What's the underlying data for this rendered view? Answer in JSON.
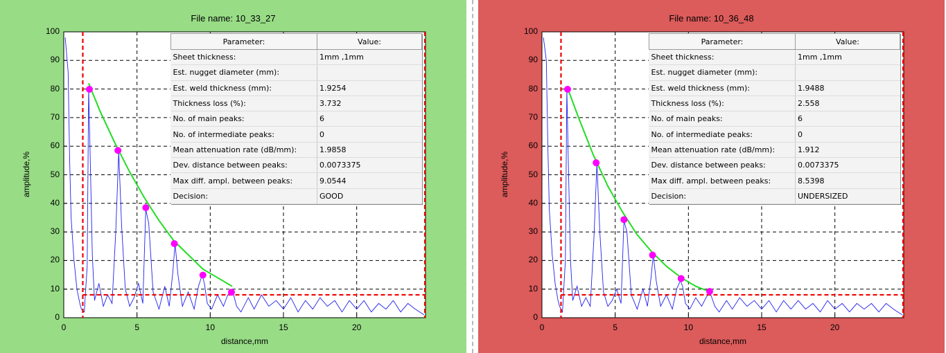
{
  "panels": [
    {
      "title": "File name: 10_33_27",
      "background": "#98dc86",
      "table": {
        "headers": [
          "Parameter:",
          "Value:"
        ],
        "rows": [
          [
            "Sheet thickness:",
            "1mm ,1mm"
          ],
          [
            "Est. nugget diameter (mm):",
            ""
          ],
          [
            "Est. weld thickness (mm):",
            "1.9254"
          ],
          [
            "Thickness loss (%):",
            "3.732"
          ],
          [
            "No. of main peaks:",
            "6"
          ],
          [
            "No. of intermediate peaks:",
            "0"
          ],
          [
            "Mean attenuation rate (dB/mm):",
            "1.9858"
          ],
          [
            "Dev. distance between peaks:",
            "0.0073375"
          ],
          [
            "Max diff. ampl. between peaks:",
            "9.0544"
          ],
          [
            "Decision:",
            "GOOD"
          ]
        ]
      }
    },
    {
      "title": "File name: 10_36_48",
      "background": "#dc5b5b",
      "table": {
        "headers": [
          "Parameter:",
          "Value:"
        ],
        "rows": [
          [
            "Sheet thickness:",
            "1mm ,1mm"
          ],
          [
            "Est. nugget diameter (mm):",
            ""
          ],
          [
            "Est. weld thickness (mm):",
            "1.9488"
          ],
          [
            "Thickness loss (%):",
            "2.558"
          ],
          [
            "No. of main peaks:",
            "6"
          ],
          [
            "No. of intermediate peaks:",
            "0"
          ],
          [
            "Mean attenuation rate (dB/mm):",
            "1.912"
          ],
          [
            "Dev. distance between peaks:",
            "0.0073375"
          ],
          [
            "Max diff. ampl. between peaks:",
            "8.5398"
          ],
          [
            "Decision:",
            "UNDERSIZED"
          ]
        ]
      }
    }
  ],
  "chart_data": [
    {
      "type": "line",
      "title": "File name: 10_33_27",
      "xlabel": "distance,mm",
      "ylabel": "amplitude,%",
      "xlim": [
        0,
        24.7
      ],
      "ylim": [
        0,
        100
      ],
      "xticks": [
        0,
        5,
        10,
        15,
        20
      ],
      "yticks": [
        0,
        10,
        20,
        30,
        40,
        50,
        60,
        70,
        80,
        90,
        100
      ],
      "grid": true,
      "signal_color": "#2020ee",
      "fit_color": "#22dd22",
      "peak_color": "#ff00ff",
      "threshold_color": "#ee0000",
      "signal": {
        "x": [
          0.1,
          0.3,
          0.4,
          0.5,
          0.7,
          0.9,
          1.1,
          1.2,
          1.4,
          1.6,
          1.7,
          1.8,
          1.95,
          2.1,
          2.4,
          2.7,
          3.0,
          3.3,
          3.55,
          3.75,
          3.95,
          4.2,
          4.5,
          4.8,
          5.1,
          5.4,
          5.6,
          5.8,
          6.1,
          6.5,
          6.9,
          7.2,
          7.45,
          7.6,
          7.8,
          8.1,
          8.5,
          8.9,
          9.2,
          9.45,
          9.6,
          9.8,
          10.1,
          10.5,
          10.9,
          11.2,
          11.45,
          11.6,
          11.8,
          12.1,
          12.6,
          13.0,
          13.5,
          14.0,
          14.5,
          15.0,
          15.5,
          16.0,
          16.5,
          17.0,
          17.5,
          18.0,
          18.5,
          19.0,
          19.5,
          20.0,
          20.5,
          21.0,
          21.5,
          22.0,
          22.5,
          23.0,
          23.5,
          24.0,
          24.6
        ],
        "y": [
          98,
          86,
          55,
          35,
          20,
          10,
          5,
          3,
          2,
          18,
          80,
          58,
          22,
          6,
          12,
          4,
          8,
          5,
          30,
          58,
          32,
          10,
          4,
          7,
          12,
          5,
          38,
          33,
          9,
          3,
          11,
          4,
          16,
          26,
          15,
          4,
          9,
          3,
          11,
          15,
          12,
          5,
          3,
          8,
          4,
          8,
          9,
          8,
          4,
          2,
          7,
          3,
          8,
          4,
          6,
          3,
          7,
          2,
          6,
          3,
          7,
          4,
          6,
          2,
          6,
          3,
          6,
          2,
          5,
          3,
          6,
          2,
          5,
          3,
          1
        ]
      },
      "fit": {
        "x": [
          1.7,
          2.5,
          3.5,
          4.5,
          5.5,
          6.5,
          7.5,
          8.5,
          9.5,
          10.5,
          11.5
        ],
        "y": [
          82,
          72,
          61,
          51,
          42,
          34,
          27,
          22,
          17,
          14,
          11
        ]
      },
      "peaks": {
        "x": [
          1.75,
          3.7,
          5.6,
          7.55,
          9.5,
          11.45
        ],
        "y": [
          79.9,
          58.5,
          38.5,
          25.9,
          14.9,
          8.9
        ]
      },
      "threshold": {
        "x": 1.3,
        "y": 8
      }
    },
    {
      "type": "line",
      "title": "File name: 10_36_48",
      "xlabel": "distance,mm",
      "ylabel": "amplitude,%",
      "xlim": [
        0,
        24.7
      ],
      "ylim": [
        0,
        100
      ],
      "xticks": [
        0,
        5,
        10,
        15,
        20
      ],
      "yticks": [
        0,
        10,
        20,
        30,
        40,
        50,
        60,
        70,
        80,
        90,
        100
      ],
      "grid": true,
      "signal_color": "#2020ee",
      "fit_color": "#22dd22",
      "peak_color": "#ff00ff",
      "threshold_color": "#ee0000",
      "signal": {
        "x": [
          0.1,
          0.3,
          0.4,
          0.5,
          0.7,
          0.9,
          1.1,
          1.2,
          1.4,
          1.6,
          1.7,
          1.8,
          1.95,
          2.1,
          2.4,
          2.7,
          3.0,
          3.3,
          3.55,
          3.75,
          3.95,
          4.2,
          4.5,
          4.8,
          5.1,
          5.4,
          5.6,
          5.8,
          6.1,
          6.5,
          6.9,
          7.2,
          7.45,
          7.6,
          7.8,
          8.1,
          8.5,
          8.9,
          9.2,
          9.45,
          9.6,
          9.8,
          10.1,
          10.5,
          10.9,
          11.2,
          11.45,
          11.6,
          11.8,
          12.1,
          12.6,
          13.0,
          13.5,
          14.0,
          14.5,
          15.0,
          15.5,
          16.0,
          16.5,
          17.0,
          17.5,
          18.0,
          18.5,
          19.0,
          19.5,
          20.0,
          20.5,
          21.0,
          21.5,
          22.0,
          22.5,
          23.0,
          23.5,
          24.0,
          24.6
        ],
        "y": [
          98,
          90,
          60,
          38,
          22,
          12,
          6,
          4,
          2,
          20,
          80,
          55,
          20,
          6,
          11,
          4,
          7,
          4,
          28,
          54,
          30,
          9,
          4,
          6,
          10,
          5,
          34,
          30,
          8,
          3,
          10,
          4,
          14,
          22,
          13,
          4,
          8,
          3,
          10,
          13,
          11,
          5,
          3,
          7,
          4,
          7,
          9,
          7,
          4,
          2,
          6,
          3,
          7,
          4,
          6,
          3,
          6,
          2,
          6,
          3,
          6,
          3,
          5,
          2,
          6,
          3,
          5,
          2,
          5,
          3,
          5,
          2,
          5,
          3,
          1
        ]
      },
      "fit": {
        "x": [
          1.7,
          2.5,
          3.5,
          4.5,
          5.5,
          6.5,
          7.5,
          8.5,
          9.5,
          10.5,
          11.5
        ],
        "y": [
          81,
          70,
          57,
          46,
          37,
          29,
          23,
          18,
          14,
          11,
          9
        ]
      },
      "peaks": {
        "x": [
          1.75,
          3.7,
          5.6,
          7.55,
          9.5,
          11.45
        ],
        "y": [
          79.9,
          54.2,
          34.3,
          21.9,
          13.7,
          9.2
        ]
      },
      "threshold": {
        "x": 1.3,
        "y": 8
      }
    }
  ]
}
